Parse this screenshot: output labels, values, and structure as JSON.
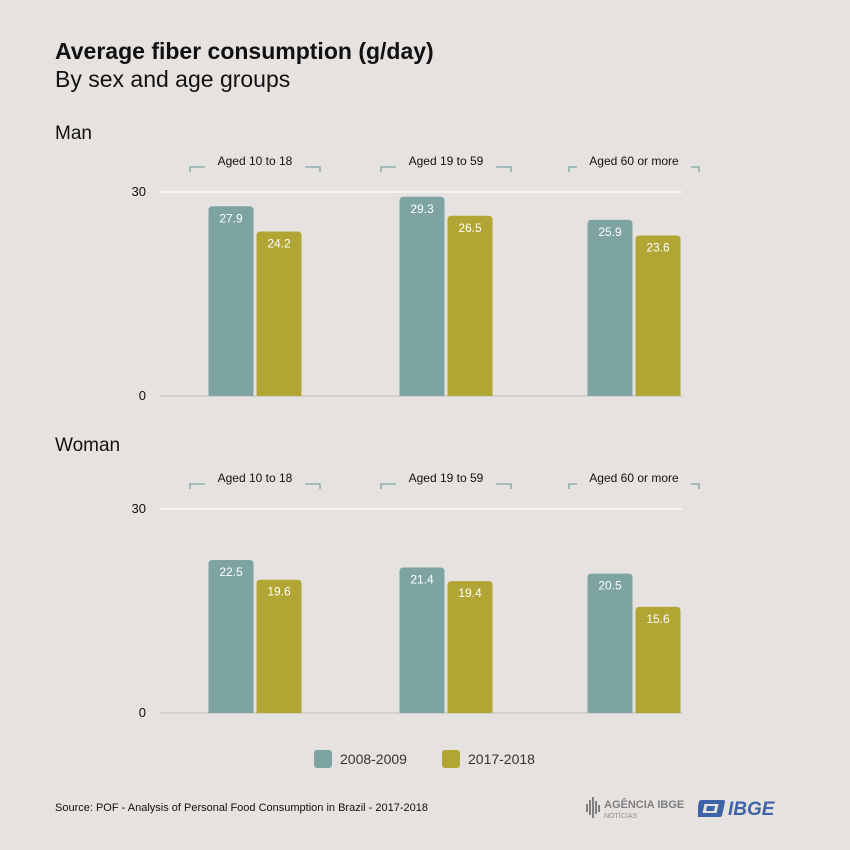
{
  "header": {
    "title": "Average fiber consumption (g/day)",
    "subtitle": "By sex and age groups"
  },
  "footer": {
    "source": "Source: POF - Analysis of Personal Food Consumption in Brazil - 2017-2018",
    "logo_agencia": "AGÊNCIA IBGE",
    "logo_agencia_sub": "NOTÍCIAS",
    "logo_ibge": "IBGE"
  },
  "colors": {
    "series_2008": "#7da4a3",
    "series_2017": "#b1a534",
    "background": "#e6e2df"
  },
  "chart_data": {
    "type": "bar",
    "categories": [
      "Aged 10 to 18",
      "Aged 19 to 59",
      "Aged 60 or more"
    ],
    "ylim": [
      0,
      30
    ],
    "yticks": [
      0,
      30
    ],
    "legend": {
      "position": "bottom",
      "entries": [
        "2008-2009",
        "2017-2018"
      ]
    },
    "panels": [
      {
        "label": "Man",
        "series": [
          {
            "name": "2008-2009",
            "values": [
              27.9,
              29.3,
              25.9
            ]
          },
          {
            "name": "2017-2018",
            "values": [
              24.2,
              26.5,
              23.6
            ]
          }
        ]
      },
      {
        "label": "Woman",
        "series": [
          {
            "name": "2008-2009",
            "values": [
              22.5,
              21.4,
              20.5
            ]
          },
          {
            "name": "2017-2018",
            "values": [
              19.6,
              19.4,
              15.6
            ]
          }
        ]
      }
    ]
  }
}
